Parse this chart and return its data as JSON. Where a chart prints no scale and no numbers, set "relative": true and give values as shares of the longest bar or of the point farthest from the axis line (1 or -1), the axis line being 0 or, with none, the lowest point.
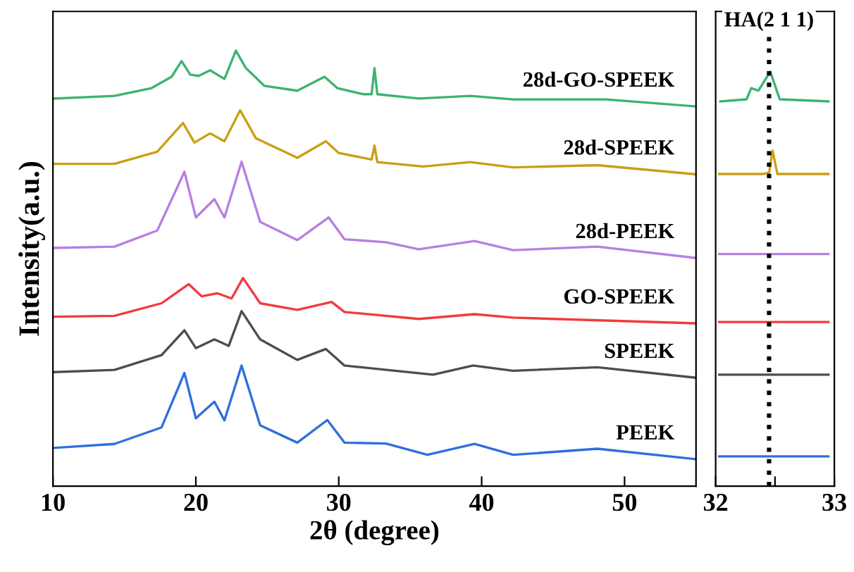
{
  "chart_data": [
    {
      "type": "line",
      "relative": true,
      "xlabel": "2θ (degree)",
      "ylabel": "Intensity(a.u.)",
      "xlim": [
        10,
        55
      ],
      "xticks": [
        10,
        20,
        30,
        40,
        50
      ],
      "tick_labels": "x",
      "legend": false,
      "grid": false,
      "series": [
        {
          "name": "28d-GO-SPEEK",
          "color": "#3db371",
          "x": [
            10.07,
            14.3,
            16.9,
            18.3,
            19.0,
            19.6,
            20.2,
            21.0,
            22.0,
            22.8,
            23.5,
            24.8,
            27.1,
            29.0,
            29.9,
            31.7,
            32.3,
            32.5,
            32.7,
            35.6,
            39.2,
            42.2,
            48.7,
            55.0
          ],
          "values": [
            0.89,
            0.896,
            0.914,
            0.94,
            0.976,
            0.945,
            0.942,
            0.955,
            0.935,
            1.0,
            0.96,
            0.919,
            0.908,
            0.94,
            0.914,
            0.9,
            0.9,
            0.96,
            0.9,
            0.89,
            0.896,
            0.888,
            0.888,
            0.872
          ]
        },
        {
          "name": "28d-SPEEK",
          "color": "#cc9e14",
          "x": [
            10.07,
            14.3,
            17.3,
            19.1,
            19.9,
            21.0,
            22.0,
            23.1,
            24.2,
            27.1,
            29.1,
            30.0,
            32.3,
            32.5,
            32.7,
            35.9,
            39.2,
            42.2,
            48.1,
            55.0
          ],
          "values": [
            0.74,
            0.74,
            0.768,
            0.834,
            0.789,
            0.81,
            0.792,
            0.863,
            0.799,
            0.754,
            0.792,
            0.765,
            0.75,
            0.782,
            0.744,
            0.734,
            0.744,
            0.732,
            0.737,
            0.716
          ]
        },
        {
          "name": "28d-PEEK",
          "color": "#b77fe3",
          "x": [
            10.07,
            14.3,
            17.3,
            19.2,
            20.0,
            21.3,
            22.0,
            23.2,
            24.5,
            27.1,
            29.3,
            30.4,
            33.3,
            35.6,
            39.5,
            42.2,
            48.1,
            55.0
          ],
          "values": [
            0.547,
            0.55,
            0.587,
            0.722,
            0.617,
            0.659,
            0.617,
            0.745,
            0.607,
            0.565,
            0.617,
            0.567,
            0.56,
            0.544,
            0.563,
            0.542,
            0.55,
            0.524
          ]
        },
        {
          "name": "GO-SPEEK",
          "color": "#f03c3c",
          "x": [
            10.07,
            14.3,
            17.6,
            19.5,
            20.4,
            21.5,
            22.5,
            23.3,
            24.5,
            27.1,
            29.5,
            30.4,
            35.6,
            39.5,
            42.2,
            55.0
          ],
          "values": [
            0.389,
            0.391,
            0.42,
            0.464,
            0.436,
            0.443,
            0.431,
            0.478,
            0.42,
            0.405,
            0.423,
            0.4,
            0.384,
            0.395,
            0.387,
            0.374
          ]
        },
        {
          "name": "SPEEK",
          "color": "#4d4d4d",
          "x": [
            10.07,
            14.3,
            17.6,
            19.2,
            20.0,
            21.3,
            22.3,
            23.2,
            24.5,
            27.1,
            29.1,
            30.4,
            36.6,
            39.4,
            42.2,
            48.1,
            55.0
          ],
          "values": [
            0.262,
            0.267,
            0.301,
            0.358,
            0.317,
            0.337,
            0.322,
            0.402,
            0.337,
            0.29,
            0.315,
            0.277,
            0.256,
            0.277,
            0.265,
            0.273,
            0.249
          ]
        },
        {
          "name": "PEEK",
          "color": "#2e6fdc",
          "x": [
            10.07,
            14.3,
            17.6,
            19.2,
            20.0,
            21.3,
            22.0,
            23.2,
            24.5,
            27.1,
            29.2,
            30.4,
            33.3,
            36.2,
            39.5,
            42.2,
            48.1,
            55.0
          ],
          "values": [
            0.088,
            0.097,
            0.135,
            0.26,
            0.156,
            0.194,
            0.151,
            0.277,
            0.14,
            0.1,
            0.152,
            0.1,
            0.098,
            0.072,
            0.097,
            0.072,
            0.086,
            0.062
          ]
        }
      ]
    },
    {
      "type": "line",
      "relative": true,
      "xlim": [
        32,
        33
      ],
      "xticks": [
        32,
        {
          "value": 32.5,
          "label": null
        },
        33
      ],
      "tick_labels": "x",
      "legend": false,
      "grid": false,
      "ref_lines": [
        {
          "axis": "x",
          "value": 32.45,
          "label": "HA(2 1 1)",
          "color": "#000000",
          "line_style": "dotted"
        }
      ],
      "series": [
        {
          "color": "#3db371",
          "x": [
            32.04,
            32.26,
            32.3,
            32.36,
            32.46,
            32.54,
            32.95
          ],
          "values": [
            0.928,
            0.933,
            0.96,
            0.954,
            1.0,
            0.933,
            0.928
          ]
        },
        {
          "color": "#cc9e14",
          "x": [
            32.03,
            32.4,
            32.45,
            32.48,
            32.52,
            32.95
          ],
          "values": [
            0.753,
            0.753,
            0.756,
            0.809,
            0.753,
            0.753
          ]
        },
        {
          "color": "#b77fe3",
          "x": [
            32.03,
            32.95
          ],
          "values": [
            0.56,
            0.56
          ]
        },
        {
          "color": "#f03c3c",
          "x": [
            32.03,
            32.95
          ],
          "values": [
            0.396,
            0.396
          ]
        },
        {
          "color": "#4d4d4d",
          "x": [
            32.03,
            32.95
          ],
          "values": [
            0.269,
            0.269
          ]
        },
        {
          "color": "#2e6fdc",
          "x": [
            32.03,
            32.95
          ],
          "values": [
            0.072,
            0.072
          ]
        }
      ]
    }
  ]
}
